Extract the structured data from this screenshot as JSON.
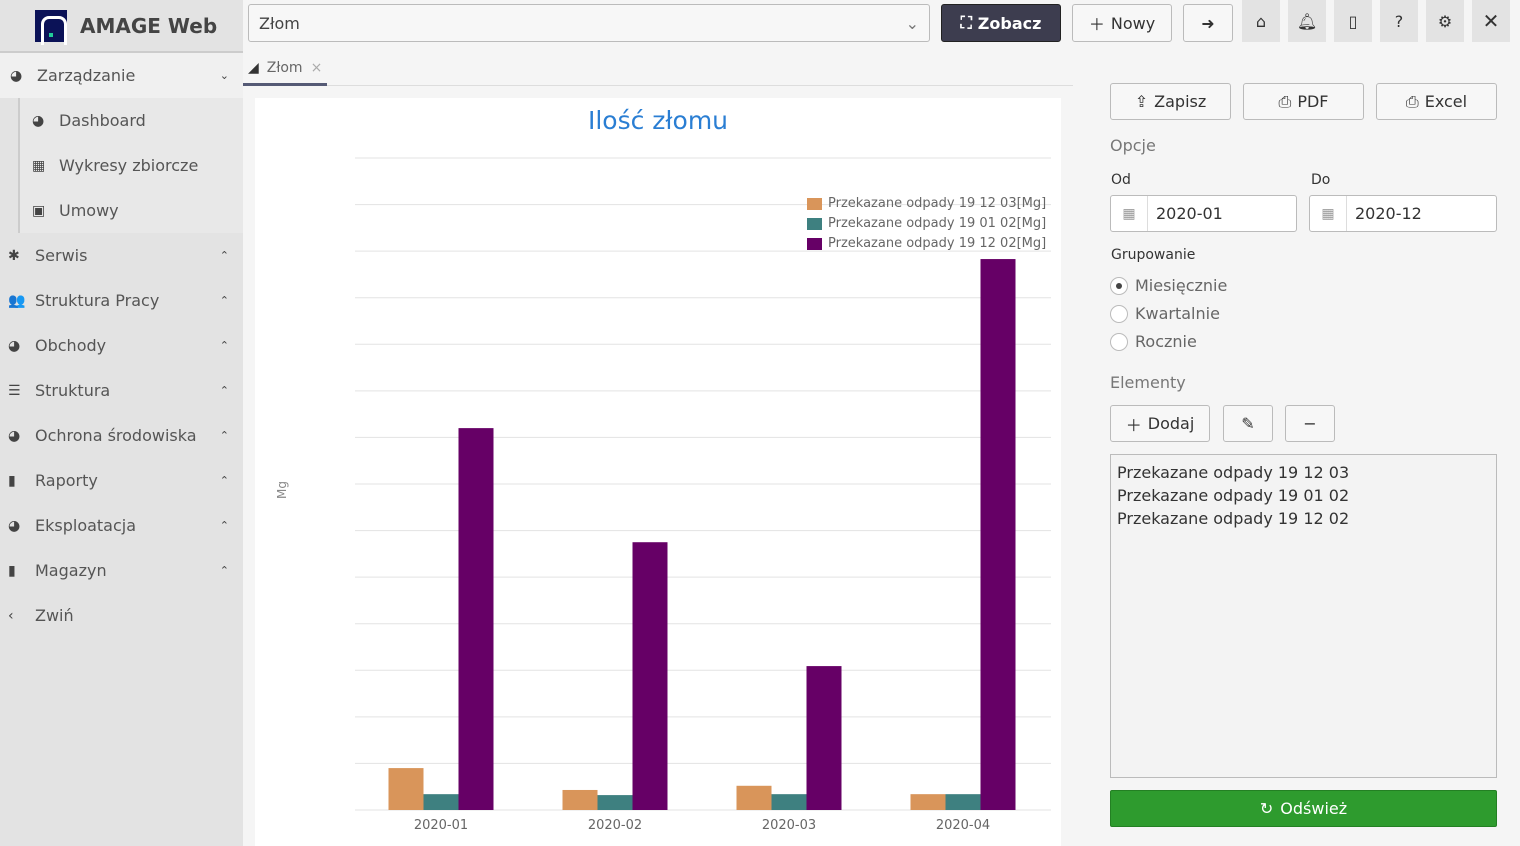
{
  "app": {
    "title": "AMAGE Web"
  },
  "sidebar": {
    "items": [
      {
        "label": "Zarządzanie",
        "icon": "dashboard-icon",
        "open": true,
        "children": [
          {
            "label": "Dashboard",
            "icon": "dashboard-icon"
          },
          {
            "label": "Wykresy zbiorcze",
            "icon": "chart-icon"
          },
          {
            "label": "Umowy",
            "icon": "document-icon"
          }
        ]
      },
      {
        "label": "Serwis",
        "icon": "bug-icon"
      },
      {
        "label": "Struktura Pracy",
        "icon": "users-icon"
      },
      {
        "label": "Obchody",
        "icon": "dashboard-icon"
      },
      {
        "label": "Struktura",
        "icon": "list-icon"
      },
      {
        "label": "Ochrona środowiska",
        "icon": "dashboard-icon"
      },
      {
        "label": "Raporty",
        "icon": "file-icon"
      },
      {
        "label": "Eksploatacja",
        "icon": "dashboard-icon"
      },
      {
        "label": "Magazyn",
        "icon": "file-icon"
      },
      {
        "label": "Zwiń",
        "icon": "chevron-left-icon"
      }
    ]
  },
  "toolbar": {
    "select_value": "Złom",
    "view_label": "Zobacz",
    "new_label": "Nowy"
  },
  "tabs": [
    {
      "label": "Złom"
    }
  ],
  "chart_data": {
    "type": "bar",
    "title": "Ilość złomu",
    "ylabel": "Mg",
    "categories": [
      "2020-01",
      "2020-02",
      "2020-03",
      "2020-04"
    ],
    "ylim": [
      0,
      14
    ],
    "grid": true,
    "legend_position": "top-right",
    "series": [
      {
        "name": "Przekazane odpady 19 12 03[Mg]",
        "color": "#d9955a",
        "values": [
          0.9,
          0.43,
          0.52,
          0.34
        ]
      },
      {
        "name": "Przekazane odpady 19 01 02[Mg]",
        "color": "#3e8080",
        "values": [
          0.34,
          0.32,
          0.34,
          0.34
        ]
      },
      {
        "name": "Przekazane odpady 19 12 02[Mg]",
        "color": "#660066",
        "values": [
          8.2,
          5.75,
          3.09,
          11.83
        ]
      }
    ]
  },
  "panel": {
    "save_label": "Zapisz",
    "pdf_label": "PDF",
    "excel_label": "Excel",
    "options_label": "Opcje",
    "from_label": "Od",
    "to_label": "Do",
    "from_value": "2020-01",
    "to_value": "2020-12",
    "grouping_label": "Grupowanie",
    "grouping_options": [
      {
        "label": "Miesięcznie",
        "checked": true
      },
      {
        "label": "Kwartalnie",
        "checked": false
      },
      {
        "label": "Rocznie",
        "checked": false
      }
    ],
    "elements_label": "Elementy",
    "add_label": "Dodaj",
    "elements": [
      "Przekazane odpady 19 12 03",
      "Przekazane odpady 19 01 02",
      "Przekazane odpady 19 12 02"
    ],
    "refresh_label": "Odśwież"
  }
}
